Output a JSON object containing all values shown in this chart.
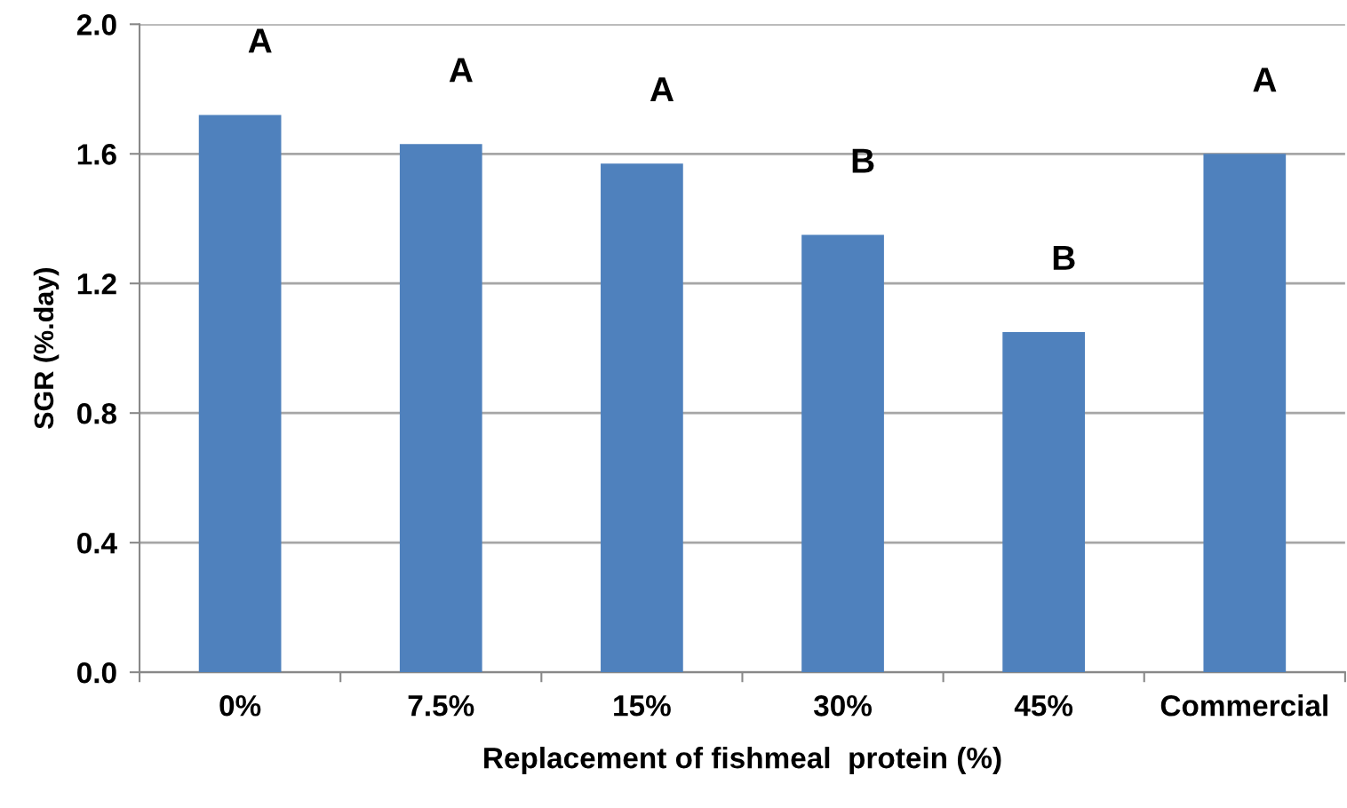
{
  "chart_data": {
    "type": "bar",
    "xlabel": "Replacement of fishmeal  protein (%)",
    "ylabel": "SGR (%.day)",
    "categories": [
      "0%",
      "7.5%",
      "15%",
      "30%",
      "45%",
      "Commercial"
    ],
    "values": [
      1.72,
      1.63,
      1.57,
      1.35,
      1.05,
      1.6
    ],
    "color": "#4f81bd",
    "ylim": [
      0,
      2.0
    ],
    "yticks": [
      {
        "value": 0,
        "label": "0.0"
      },
      {
        "value": 0.4,
        "label": "0.4"
      },
      {
        "value": 0.8,
        "label": "0.8"
      },
      {
        "value": 1.2,
        "label": "1.2"
      },
      {
        "value": 1.6,
        "label": "1.6"
      },
      {
        "value": 2.0,
        "label": "2.0"
      }
    ],
    "grid": "y",
    "legend": false,
    "value_labels": [
      "A",
      "A",
      "A",
      "B",
      "B",
      "A"
    ]
  }
}
